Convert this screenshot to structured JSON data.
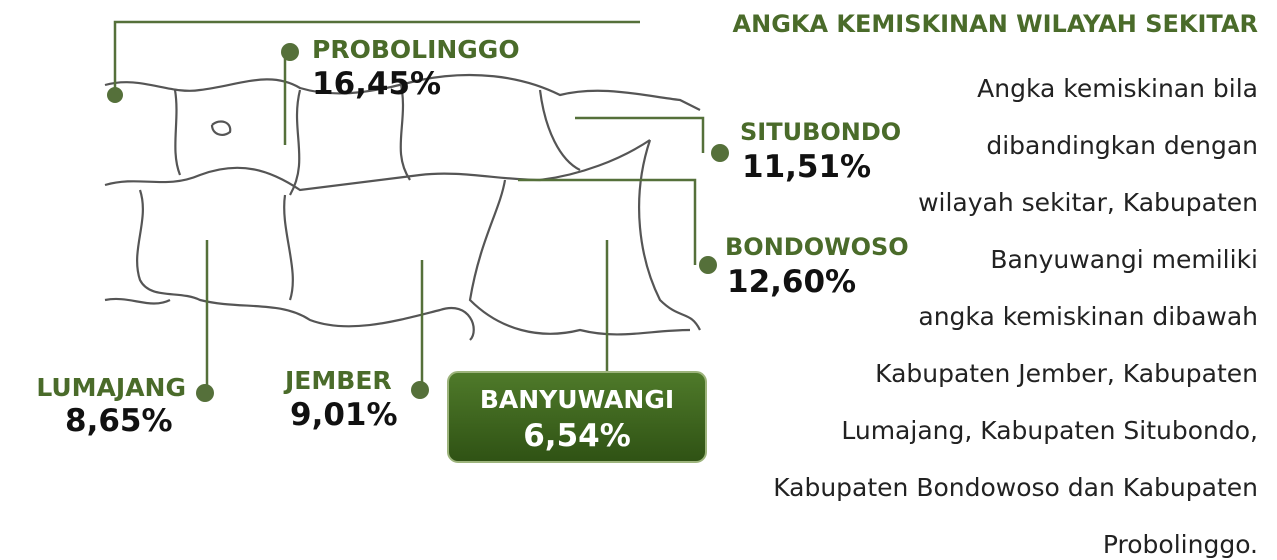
{
  "title": "ANGKA KEMISKINAN WILAYAH SEKITAR",
  "regions": [
    {
      "name": "PROBOLINGGO",
      "value": "16,45%"
    },
    {
      "name": "SITUBONDO",
      "value": "11,51%"
    },
    {
      "name": "BONDOWOSO",
      "value": "12,60%"
    },
    {
      "name": "LUMAJANG",
      "value": "8,65%"
    },
    {
      "name": "JEMBER",
      "value": "9,01%"
    },
    {
      "name": "BANYUWANGI",
      "value": "6,54%"
    }
  ],
  "paragraph": [
    "Angka kemiskinan bila",
    "dibandingkan dengan",
    "wilayah sekitar, Kabupaten",
    "Banyuwangi memiliki",
    "angka kemiskinan dibawah",
    "Kabupaten Jember, Kabupaten",
    "Lumajang, Kabupaten Situbondo,",
    "Kabupaten Bondowoso dan Kabupaten",
    "Probolinggo."
  ]
}
